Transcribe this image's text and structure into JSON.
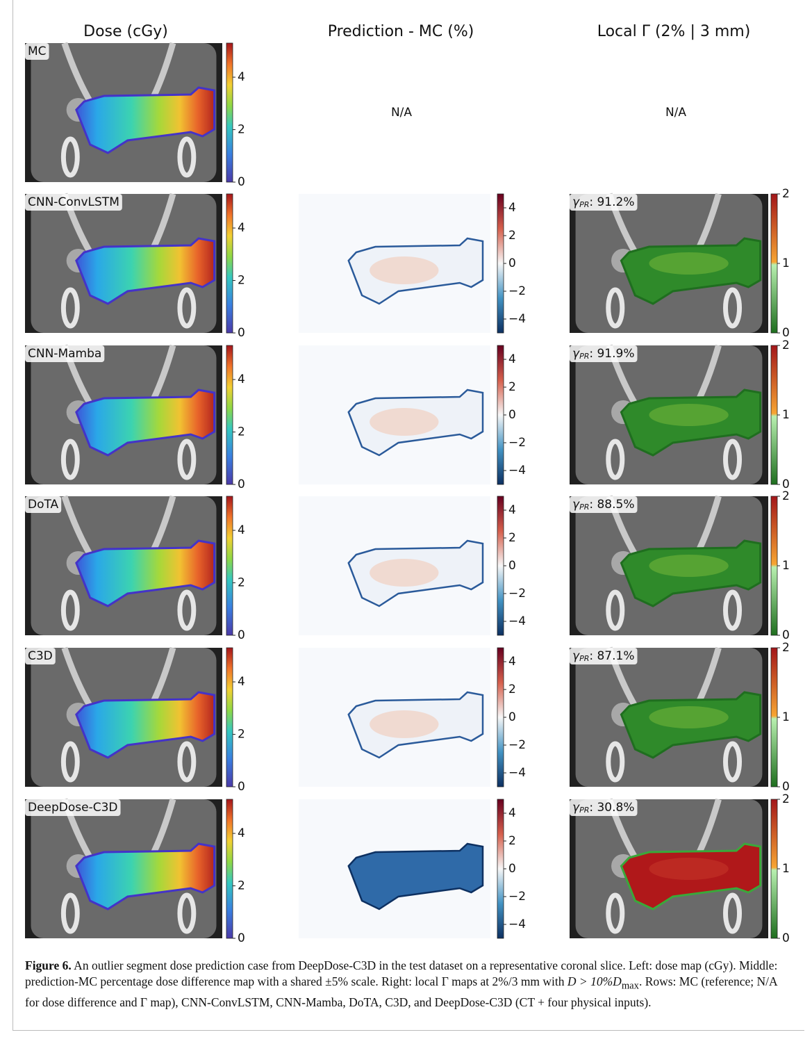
{
  "header": {
    "columns": [
      "Dose (cGy)",
      "Prediction - MC (%)",
      "Local Γ (2% | 3 mm)"
    ]
  },
  "colorbars": {
    "dose": [
      "0",
      "2",
      "4"
    ],
    "difference": [
      "−4",
      "−2",
      "0",
      "2",
      "4"
    ],
    "gamma": [
      "0",
      "1",
      "2"
    ]
  },
  "gamma_symbol": "γ",
  "gamma_subscript": "PR",
  "rows": [
    {
      "label": "MC",
      "difference": "N/A",
      "gamma": "N/A"
    },
    {
      "label": "CNN-ConvLSTM",
      "gamma_pass": ": 91.2%"
    },
    {
      "label": "CNN-Mamba",
      "gamma_pass": ": 91.9%"
    },
    {
      "label": "DoTA",
      "gamma_pass": ": 88.5%"
    },
    {
      "label": "C3D",
      "gamma_pass": ": 87.1%"
    },
    {
      "label": "DeepDose-C3D",
      "gamma_pass": ": 30.8%"
    }
  ],
  "caption": {
    "label": "Figure 6.",
    "text_1": " An outlier segment dose prediction case from DeepDose-C3D in the test dataset on a representative coronal slice. Left: dose map (cGy). Middle: prediction-MC percentage dose difference map with a shared ±5% scale. Right: local Γ maps at 2%/3 mm with ",
    "math": "D > 10%D",
    "subscript": "max",
    "text_2": ". Rows: MC (reference; N/A for dose difference and Γ map), CNN-ConvLSTM, CNN-Mamba, DoTA, C3D, and DeepDose-C3D (CT + four physical inputs)."
  }
}
